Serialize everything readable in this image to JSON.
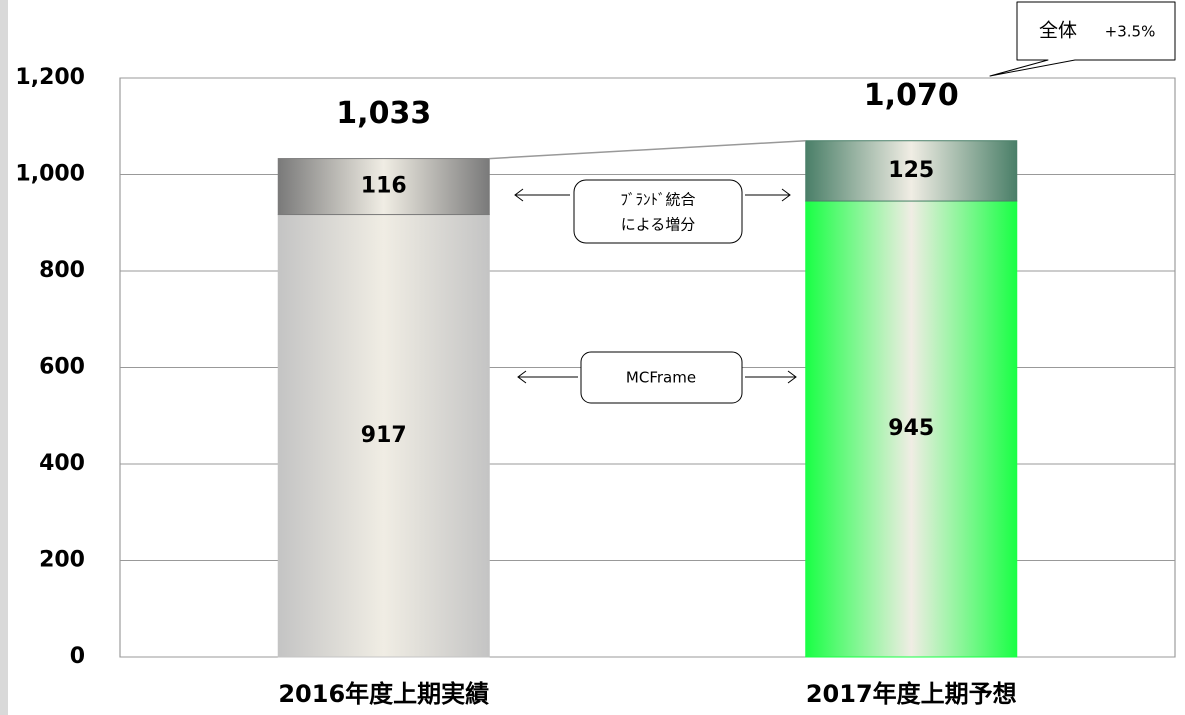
{
  "chart_data": {
    "type": "stacked_bar",
    "categories": [
      "2016年度上期実績",
      "2017年度上期予想"
    ],
    "series": [
      {
        "name": "MCFrame",
        "colors": [
          "#c4c4c4",
          "#19ff45"
        ],
        "values": [
          917,
          945
        ]
      },
      {
        "name": [
          "ﾌﾞﾗﾝﾄﾞ統合",
          "による増分"
        ],
        "colors": [
          "#7a7a7a",
          "#4a7f68"
        ],
        "values": [
          116,
          125
        ]
      }
    ],
    "totals": {
      "values": [
        1033,
        1070
      ],
      "value_labels": [
        "1,033",
        "1,070"
      ]
    },
    "annotation": {
      "label": "全体",
      "value": "+3.5%"
    },
    "ylim": [
      0,
      1200
    ],
    "yticks": [
      0,
      200,
      400,
      600,
      800,
      {
        "value": 1000,
        "label": "1,000"
      },
      {
        "value": 1200,
        "label": "1,200"
      }
    ],
    "grid": true
  }
}
